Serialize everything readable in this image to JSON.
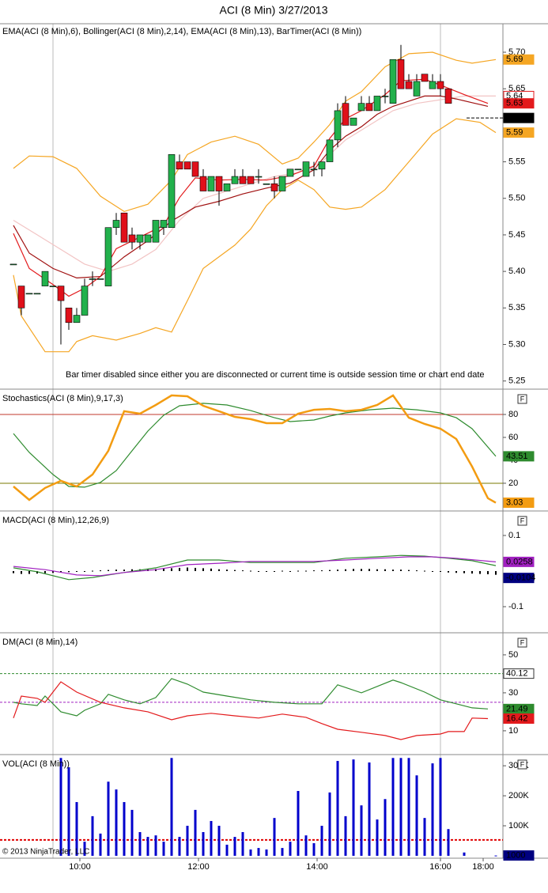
{
  "title": "ACI (8 Min)  3/27/2013",
  "copyright": "© 2013 NinjaTrader, LLC",
  "x_axis": {
    "xlim": [
      -1.7,
      61.9
    ],
    "xticks": [
      {
        "value": 8.4,
        "label": "10:00"
      },
      {
        "value": 23.4,
        "label": "12:00"
      },
      {
        "value": 38.4,
        "label": "14:00"
      },
      {
        "value": 54,
        "label": "16:00"
      },
      {
        "value": 59.4,
        "label": "18:00"
      }
    ]
  },
  "chart_data": [
    {
      "type": "candlestick",
      "title": "EMA(ACI (8 Min),6), Bollinger(ACI (8 Min),2,14), EMA(ACI (8 Min),13), BarTimer(ACI (8 Min))",
      "annotation": "Bar timer disabled since either you are disconnected or current time is outside session time or chart end date",
      "ylim": [
        5.241,
        5.739
      ],
      "yticks": [
        5.25,
        {
          "value": 5.3,
          "label": "5.30"
        },
        5.35,
        {
          "value": 5.4,
          "label": "5.40"
        },
        5.45,
        {
          "value": 5.5,
          "label": "5.50"
        },
        5.55,
        5.65,
        {
          "value": 5.7,
          "label": "5.70"
        }
      ],
      "up_color": "#22b14c",
      "down_color": "#e0101a",
      "open": [
        5.41,
        5.38,
        5.37,
        5.37,
        5.38,
        5.38,
        5.38,
        5.35,
        5.33,
        5.34,
        5.39,
        5.39,
        5.38,
        5.46,
        5.48,
        5.45,
        5.44,
        5.44,
        5.44,
        5.46,
        5.46,
        5.55,
        5.55,
        5.55,
        5.53,
        5.51,
        5.53,
        5.51,
        5.52,
        5.53,
        5.53,
        5.53,
        5.52,
        5.52,
        5.51,
        5.53,
        5.54,
        5.53,
        5.54,
        5.54,
        5.55,
        5.58,
        5.63,
        5.6,
        5.62,
        5.63,
        5.62,
        5.64,
        5.63,
        5.69,
        5.66,
        5.64,
        5.67,
        5.65,
        5.66,
        5.65
      ],
      "high": [
        5.41,
        5.38,
        5.37,
        5.37,
        5.4,
        5.38,
        5.38,
        5.35,
        5.35,
        5.39,
        5.4,
        5.39,
        5.46,
        5.48,
        5.48,
        5.46,
        5.45,
        5.45,
        5.47,
        5.47,
        5.56,
        5.56,
        5.55,
        5.55,
        5.54,
        5.53,
        5.53,
        5.52,
        5.54,
        5.54,
        5.53,
        5.54,
        5.52,
        5.53,
        5.53,
        5.54,
        5.54,
        5.55,
        5.55,
        5.55,
        5.58,
        5.63,
        5.64,
        5.61,
        5.64,
        5.64,
        5.64,
        5.65,
        5.69,
        5.71,
        5.67,
        5.67,
        5.67,
        5.67,
        5.67,
        5.65
      ],
      "low": [
        5.41,
        5.34,
        5.37,
        5.37,
        5.38,
        5.38,
        5.3,
        5.32,
        5.33,
        5.34,
        5.38,
        5.39,
        5.38,
        5.45,
        5.44,
        5.43,
        5.43,
        5.44,
        5.44,
        5.45,
        5.46,
        5.54,
        5.54,
        5.53,
        5.51,
        5.51,
        5.49,
        5.51,
        5.52,
        5.52,
        5.52,
        5.52,
        5.52,
        5.5,
        5.51,
        5.53,
        5.54,
        5.53,
        5.53,
        5.53,
        5.55,
        5.57,
        5.6,
        5.6,
        5.62,
        5.62,
        5.62,
        5.63,
        5.63,
        5.65,
        5.65,
        5.64,
        5.66,
        5.65,
        5.64,
        5.63
      ],
      "close": [
        5.41,
        5.35,
        5.37,
        5.37,
        5.4,
        5.38,
        5.36,
        5.33,
        5.34,
        5.38,
        5.39,
        5.39,
        5.46,
        5.47,
        5.44,
        5.44,
        5.45,
        5.45,
        5.47,
        5.47,
        5.56,
        5.54,
        5.54,
        5.53,
        5.51,
        5.53,
        5.51,
        5.52,
        5.53,
        5.52,
        5.52,
        5.53,
        5.52,
        5.51,
        5.53,
        5.54,
        5.54,
        5.55,
        5.54,
        5.55,
        5.58,
        5.62,
        5.6,
        5.61,
        5.63,
        5.62,
        5.64,
        5.64,
        5.69,
        5.65,
        5.65,
        5.66,
        5.66,
        5.66,
        5.65,
        5.63
      ],
      "series": [
        {
          "color": "#f5a623",
          "show_label": true,
          "x": [
            0,
            2,
            5,
            8,
            11,
            14,
            17,
            20,
            22,
            25,
            28,
            31,
            34,
            36,
            38,
            40,
            42,
            44,
            47,
            50,
            53,
            56,
            58,
            61
          ],
          "values": [
            5.541,
            5.558,
            5.557,
            5.541,
            5.503,
            5.482,
            5.492,
            5.525,
            5.56,
            5.577,
            5.585,
            5.574,
            5.547,
            5.555,
            5.577,
            5.601,
            5.633,
            5.646,
            5.68,
            5.698,
            5.7,
            5.689,
            5.685,
            5.69
          ]
        },
        {
          "color": "#f5a623",
          "show_label": true,
          "x": [
            0,
            1,
            4,
            7,
            8,
            10,
            13,
            16,
            18,
            20,
            22,
            24,
            28,
            30,
            32,
            34,
            36,
            38,
            40,
            42,
            44,
            47,
            50,
            53,
            56,
            59,
            61
          ],
          "values": [
            5.395,
            5.339,
            5.29,
            5.29,
            5.304,
            5.312,
            5.306,
            5.315,
            5.323,
            5.317,
            5.36,
            5.404,
            5.436,
            5.458,
            5.49,
            5.512,
            5.525,
            5.512,
            5.488,
            5.485,
            5.488,
            5.512,
            5.55,
            5.588,
            5.609,
            5.604,
            5.59
          ]
        },
        {
          "color": "#f2c4c4",
          "show_label": true,
          "label_style": "outline",
          "x": [
            0,
            3,
            6,
            9,
            12,
            15,
            18,
            21,
            24,
            27,
            30,
            33,
            36,
            39,
            42,
            45,
            48,
            51,
            54,
            57,
            61
          ],
          "values": [
            5.47,
            5.45,
            5.43,
            5.41,
            5.4,
            5.41,
            5.43,
            5.47,
            5.5,
            5.51,
            5.52,
            5.53,
            5.535,
            5.55,
            5.58,
            5.6,
            5.62,
            5.63,
            5.635,
            5.64,
            5.64
          ]
        },
        {
          "color": "#e31a1c",
          "show_label": true,
          "x": [
            0,
            2,
            5,
            7,
            9,
            11,
            13,
            16,
            19,
            21,
            23,
            26,
            29,
            32,
            35,
            38,
            40,
            42,
            44,
            47,
            49,
            52,
            54,
            57,
            60
          ],
          "values": [
            5.452,
            5.404,
            5.382,
            5.366,
            5.377,
            5.393,
            5.431,
            5.447,
            5.463,
            5.501,
            5.528,
            5.525,
            5.526,
            5.525,
            5.531,
            5.544,
            5.582,
            5.609,
            5.62,
            5.642,
            5.661,
            5.663,
            5.655,
            5.642,
            5.63
          ]
        },
        {
          "color": "#a01010",
          "x": [
            0,
            2,
            5,
            8,
            11,
            14,
            17,
            20,
            23,
            26,
            29,
            32,
            35,
            38,
            40,
            42,
            44,
            46,
            48,
            50,
            52,
            54,
            56,
            58,
            60
          ],
          "values": [
            5.463,
            5.425,
            5.404,
            5.391,
            5.393,
            5.42,
            5.442,
            5.469,
            5.488,
            5.496,
            5.506,
            5.514,
            5.521,
            5.539,
            5.566,
            5.585,
            5.598,
            5.615,
            5.626,
            5.633,
            5.64,
            5.64,
            5.636,
            5.631,
            5.626
          ]
        }
      ],
      "price_line": {
        "value": 5.61,
        "color": "#000000",
        "from": 57.3
      }
    },
    {
      "type": "line",
      "title": "Stochastics(ACI (8 Min),9,17,3)",
      "button": "F",
      "ylim": [
        -2.8,
        100.7
      ],
      "yticks": [
        20,
        40,
        60,
        80
      ],
      "levels": [
        {
          "value": 80,
          "color": "#c0392b"
        },
        {
          "value": 20,
          "color": "#7a7a00"
        }
      ],
      "series": [
        {
          "color": "#2e8b2e",
          "show_label": true,
          "x": [
            0,
            2,
            5,
            7,
            9,
            11,
            13,
            15,
            17,
            19,
            21,
            24,
            27,
            30,
            33,
            35,
            38,
            40,
            42,
            45,
            48,
            51,
            54,
            56,
            58,
            61
          ],
          "values": [
            63.4,
            46.9,
            27.6,
            17.2,
            16.6,
            20.7,
            31,
            48.3,
            65.5,
            79.3,
            87.6,
            89.7,
            88.3,
            83.4,
            77.2,
            73.8,
            75.2,
            78.6,
            81.4,
            84.1,
            85.5,
            84.1,
            81.4,
            77.2,
            67.6,
            43.51
          ]
        },
        {
          "color": "#f39c12",
          "width": 2.5,
          "show_label": true,
          "x": [
            0,
            2,
            4,
            6,
            8,
            10,
            12,
            14,
            16,
            18,
            20,
            22,
            24,
            26,
            28,
            30,
            32,
            34,
            36,
            38,
            40,
            42,
            44,
            46,
            48,
            50,
            52,
            54,
            56,
            58,
            60,
            61
          ],
          "values": [
            17.2,
            5.5,
            15.9,
            22.1,
            17.2,
            27.6,
            48.3,
            82.8,
            80.7,
            88.3,
            96.6,
            95.9,
            87.6,
            82.8,
            77.9,
            75.9,
            72.4,
            72.4,
            80.7,
            84.1,
            84.8,
            82.8,
            84.1,
            88.3,
            96.6,
            77.2,
            71.7,
            67.6,
            58.6,
            34.5,
            6.9,
            3.03
          ]
        }
      ]
    },
    {
      "type": "line",
      "title": "MACD(ACI (8 Min),12,26,9)",
      "button": "F",
      "ylim": [
        -0.1689,
        0.1644
      ],
      "yticks": [
        -0.1,
        0.1
      ],
      "histogram": {
        "color": "#000000",
        "label_color": "#000080",
        "show_label": true,
        "values": [
          -0.006,
          -0.008,
          -0.008,
          -0.007,
          -0.006,
          -0.005,
          -0.004,
          -0.003,
          -0.002,
          -0.001,
          0.001,
          0.002,
          0.003,
          0.004,
          0.004,
          0.005,
          0.005,
          0.006,
          0.006,
          0.007,
          0.008,
          0.009,
          0.01,
          0.009,
          0.008,
          0.007,
          0.005,
          0.004,
          0.003,
          0.002,
          0.001,
          0,
          -0.001,
          0,
          0.001,
          0,
          0.001,
          0.001,
          0.002,
          0.002,
          0.003,
          0.004,
          0.005,
          0.006,
          0.006,
          0.006,
          0.005,
          0.005,
          0.004,
          0.004,
          0.003,
          0.002,
          0.001,
          0,
          -0.002,
          -0.004,
          -0.005,
          -0.006,
          -0.007,
          -0.008,
          -0.009,
          -0.0104
        ]
      },
      "series": [
        {
          "color": "#2e8b2e",
          "x": [
            0,
            3,
            7,
            10,
            14,
            18,
            22,
            26,
            30,
            34,
            38,
            42,
            46,
            49,
            52,
            55,
            58,
            61
          ],
          "values": [
            0.009,
            -0.002,
            -0.024,
            -0.018,
            -0.004,
            0.009,
            0.031,
            0.031,
            0.024,
            0.024,
            0.024,
            0.036,
            0.04,
            0.044,
            0.042,
            0.036,
            0.029,
            0.0154
          ]
        },
        {
          "color": "#a020c0",
          "show_label": true,
          "x": [
            0,
            4,
            8,
            11,
            14,
            18,
            22,
            26,
            30,
            34,
            38,
            42,
            46,
            50,
            53,
            56,
            61
          ],
          "values": [
            0.013,
            0.004,
            -0.011,
            -0.013,
            -0.004,
            0.004,
            0.018,
            0.022,
            0.027,
            0.027,
            0.027,
            0.031,
            0.036,
            0.04,
            0.04,
            0.036,
            0.0258
          ]
        }
      ]
    },
    {
      "type": "line",
      "title": "DM(ACI (8 Min),14)",
      "button": "F",
      "ylim": [
        -1.7,
        60.8
      ],
      "yticks": [
        10,
        30,
        50
      ],
      "levels": [
        {
          "value": 40.12,
          "color": "#2e8b2e",
          "dash": true,
          "show_label": true
        },
        {
          "value": 25,
          "color": "#a020c0",
          "dash": true
        }
      ],
      "series": [
        {
          "color": "#2e8b2e",
          "show_label": true,
          "x": [
            0,
            1,
            3,
            4,
            5,
            6,
            8,
            9,
            11,
            12,
            14,
            16,
            18,
            20,
            22,
            24,
            27,
            30,
            33,
            36,
            39,
            41,
            44,
            48,
            49,
            52,
            54,
            56,
            58,
            60
          ],
          "values": [
            25,
            24.2,
            23.3,
            28.3,
            24.2,
            20,
            17.9,
            20.8,
            24.2,
            29.2,
            26.3,
            24.2,
            27.5,
            37.5,
            34.6,
            30.4,
            28.3,
            26.3,
            25,
            24.2,
            24.2,
            34.2,
            30,
            36.7,
            35.4,
            30.4,
            26.3,
            24.2,
            22.1,
            21.49
          ]
        },
        {
          "color": "#e31a1c",
          "show_label": true,
          "x": [
            0,
            1,
            3,
            4,
            6,
            8,
            11,
            14,
            17,
            20,
            22,
            25,
            28,
            31,
            34,
            37,
            39,
            41,
            44,
            47,
            49,
            51,
            54,
            55,
            57,
            58,
            60
          ],
          "values": [
            16.7,
            28.3,
            27.1,
            25,
            35.8,
            30.4,
            25,
            22.1,
            20,
            15.8,
            17.9,
            19.2,
            17.9,
            16.7,
            18.8,
            17.1,
            13.8,
            10.8,
            9.2,
            7.5,
            5.4,
            7.5,
            8.3,
            9.6,
            9.6,
            16.7,
            16.42
          ]
        }
      ]
    },
    {
      "type": "bar",
      "title": "VOL(ACI (8 Min))",
      "button": "F",
      "ylim": [
        -8000,
        332000
      ],
      "yticks": [
        {
          "value": 100000,
          "label": "100K"
        },
        {
          "value": 200000,
          "label": "200K"
        },
        {
          "value": 300000,
          "label": "300K"
        }
      ],
      "color": "#0000cc",
      "label_color": "#000080",
      "show_label": true,
      "levels": [
        {
          "value": 53000,
          "color": "#e00000",
          "dash": true,
          "width": 2
        }
      ],
      "x": [
        6,
        7,
        8,
        9,
        10,
        11,
        12,
        13,
        14,
        15,
        16,
        17,
        18,
        19,
        20,
        21,
        22,
        23,
        24,
        25,
        26,
        27,
        28,
        29,
        30,
        31,
        32,
        33,
        34,
        35,
        36,
        37,
        38,
        39,
        40,
        41,
        42,
        43,
        44,
        45,
        46,
        47,
        48,
        49,
        50,
        51,
        52,
        53,
        54,
        55,
        57,
        61
      ],
      "values": [
        326000,
        295000,
        179000,
        47000,
        132000,
        74000,
        247000,
        221000,
        179000,
        153000,
        79000,
        63000,
        68000,
        47000,
        326000,
        63000,
        100000,
        153000,
        79000,
        116000,
        100000,
        37000,
        63000,
        79000,
        21000,
        26000,
        21000,
        126000,
        26000,
        47000,
        216000,
        68000,
        42000,
        100000,
        211000,
        316000,
        132000,
        321000,
        168000,
        311000,
        121000,
        189000,
        326000,
        326000,
        326000,
        268000,
        126000,
        308000,
        326000,
        89000,
        11000,
        1000
      ]
    }
  ]
}
